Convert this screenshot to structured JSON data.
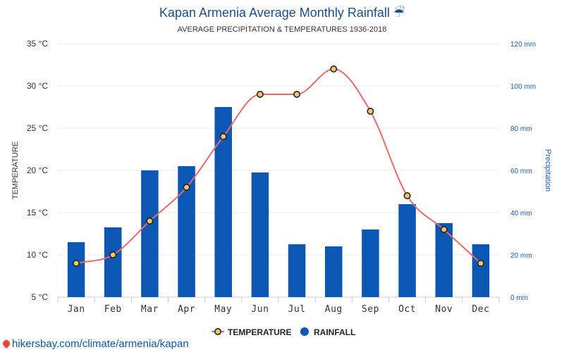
{
  "header": {
    "title": "Kapan Armenia Average Monthly Rainfall",
    "title_icon": "umbrella-rain-icon",
    "subtitle": "AVERAGE PRECIPITATION & TEMPERATURES 1936-2018"
  },
  "footer": {
    "link_text": "hikersbay.com/climate/armenia/kapan",
    "link_icon": "map-pin-icon"
  },
  "colors": {
    "bar": "#0d57b4",
    "line": "#e86a6a",
    "marker_fill": "#f2c46b",
    "marker_stroke": "#222222",
    "title": "#1c4e88"
  },
  "chart_data": {
    "type": "bar",
    "categories": [
      "Jan",
      "Feb",
      "Mar",
      "Apr",
      "May",
      "Jun",
      "Jul",
      "Aug",
      "Sep",
      "Oct",
      "Nov",
      "Dec"
    ],
    "series": [
      {
        "name": "RAINFALL",
        "type": "bar",
        "axis": "right",
        "unit": "mm",
        "values": [
          26,
          33,
          60,
          62,
          90,
          59,
          25,
          24,
          32,
          44,
          35,
          25
        ]
      },
      {
        "name": "TEMPERATURE",
        "type": "line",
        "axis": "left",
        "unit": "°C",
        "values": [
          9,
          10,
          14,
          18,
          24,
          29,
          29,
          32,
          27,
          17,
          13,
          9
        ]
      }
    ],
    "left_axis": {
      "label": "TEMPERATURE",
      "min": 5,
      "max": 35,
      "tick_labels": [
        "35 °C",
        "30 °C",
        "25 °C",
        "20 °C",
        "15 °C",
        "10 °C",
        "5 °C"
      ]
    },
    "right_axis": {
      "label": "Precipitation",
      "min": 0,
      "max": 120,
      "tick_labels": [
        "120 mm",
        "100 mm",
        "80 mm",
        "60 mm",
        "40 mm",
        "20 mm",
        "0 mm"
      ]
    },
    "legend": [
      {
        "label": "TEMPERATURE",
        "marker": "circle-line"
      },
      {
        "label": "RAINFALL",
        "marker": "circle"
      }
    ],
    "grid": true,
    "legend_position": "bottom"
  }
}
